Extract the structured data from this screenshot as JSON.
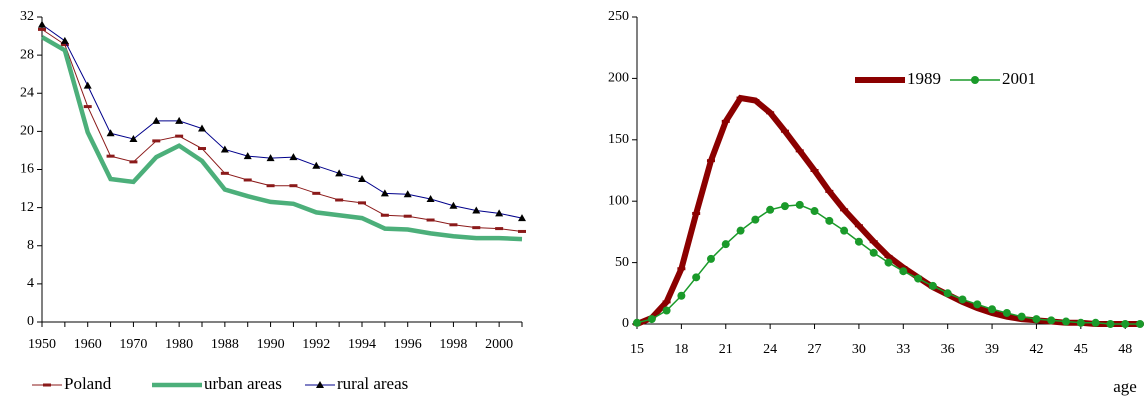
{
  "chart_data": [
    {
      "type": "line",
      "categories": [
        "1950",
        null,
        "1960",
        null,
        "1970",
        null,
        "1980",
        null,
        "1988",
        null,
        "1990",
        null,
        "1992",
        null,
        "1994",
        null,
        "1996",
        null,
        "1998",
        null,
        "2000",
        null
      ],
      "series": [
        {
          "name": "Poland",
          "color": "#8b1a1a",
          "marker": "dash",
          "values": [
            30.7,
            29.1,
            22.6,
            17.4,
            16.8,
            19.0,
            19.5,
            18.2,
            15.6,
            14.9,
            14.3,
            14.3,
            13.5,
            12.8,
            12.5,
            11.2,
            11.1,
            10.7,
            10.2,
            9.9,
            9.8,
            9.5
          ]
        },
        {
          "name": "urban areas",
          "color": "#4caf7a",
          "marker": "none",
          "values": [
            29.9,
            28.5,
            19.9,
            15.0,
            14.7,
            17.3,
            18.5,
            16.9,
            13.9,
            13.2,
            12.6,
            12.4,
            11.5,
            11.2,
            10.9,
            9.8,
            9.7,
            9.3,
            9.0,
            8.8,
            8.8,
            8.7
          ]
        },
        {
          "name": "rural areas",
          "color": "#00008b",
          "marker": "triangle",
          "values": [
            31.2,
            29.5,
            24.8,
            19.8,
            19.2,
            21.1,
            21.1,
            20.3,
            18.1,
            17.4,
            17.2,
            17.3,
            16.4,
            15.6,
            15.0,
            13.5,
            13.4,
            12.9,
            12.2,
            11.7,
            11.4,
            10.9
          ]
        }
      ],
      "ylim": [
        0,
        32
      ],
      "yticks": [
        0,
        4,
        8,
        12,
        16,
        20,
        24,
        28,
        32
      ],
      "legend": "bottom"
    },
    {
      "type": "line",
      "x_label": "age",
      "x": [
        15,
        16,
        17,
        18,
        19,
        20,
        21,
        22,
        23,
        24,
        25,
        26,
        27,
        28,
        29,
        30,
        31,
        32,
        33,
        34,
        35,
        36,
        37,
        38,
        39,
        40,
        41,
        42,
        43,
        44,
        45,
        46,
        47,
        48,
        49
      ],
      "series": [
        {
          "name": "1989",
          "color": "#8b0000",
          "marker": "dash",
          "values": [
            0,
            5,
            18,
            45,
            90,
            133,
            165,
            184,
            182,
            172,
            157,
            141,
            125,
            108,
            93,
            80,
            67,
            55,
            46,
            38,
            30,
            24,
            18,
            13,
            9,
            6,
            4,
            3,
            2,
            1,
            1,
            0,
            0,
            0,
            0
          ]
        },
        {
          "name": "2001",
          "color": "#1a9a2a",
          "marker": "circle",
          "values": [
            1,
            4,
            11,
            23,
            38,
            53,
            65,
            76,
            85,
            93,
            96,
            97,
            92,
            84,
            76,
            67,
            58,
            50,
            43,
            37,
            31,
            25,
            20,
            16,
            12,
            9,
            6,
            4,
            3,
            2,
            1,
            1,
            0,
            0,
            0
          ]
        }
      ],
      "xlim": [
        15,
        49
      ],
      "xticks": [
        15,
        18,
        21,
        24,
        27,
        30,
        33,
        36,
        39,
        42,
        45,
        48
      ],
      "ylim": [
        0,
        250
      ],
      "yticks": [
        0,
        50,
        100,
        150,
        200,
        250
      ],
      "legend": "upper right"
    }
  ]
}
